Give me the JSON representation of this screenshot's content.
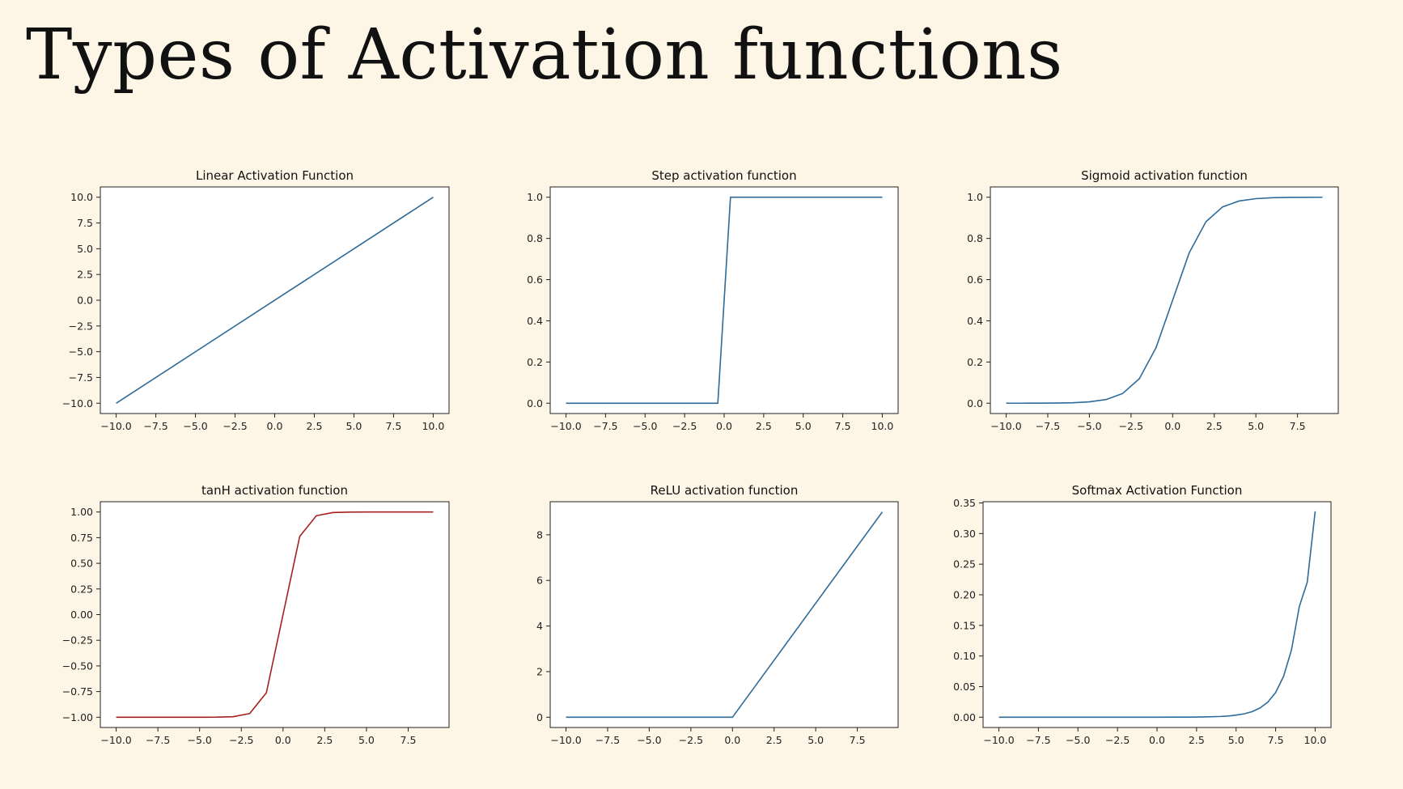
{
  "page": {
    "title": "Types of Activation functions"
  },
  "colors": {
    "background": "#fdf5e6",
    "plot_area": "#ffffff",
    "axes": "#222222",
    "series_default": "#2e6b99",
    "series_tanh": "#a52020"
  },
  "chart_data": [
    {
      "type": "line",
      "title": "Linear Activation Function",
      "xlabel": "",
      "ylabel": "",
      "xlim": [
        -11,
        11
      ],
      "ylim": [
        -11,
        11
      ],
      "xticks": [
        -10,
        -7.5,
        -5,
        -2.5,
        0,
        2.5,
        5,
        7.5,
        10
      ],
      "xtick_labels": [
        "−10.0",
        "−7.5",
        "−5.0",
        "−2.5",
        "0.0",
        "2.5",
        "5.0",
        "7.5",
        "10.0"
      ],
      "yticks": [
        -10,
        -7.5,
        -5,
        -2.5,
        0,
        2.5,
        5,
        7.5,
        10
      ],
      "ytick_labels": [
        "−10.0",
        "−7.5",
        "−5.0",
        "−2.5",
        "0.0",
        "2.5",
        "5.0",
        "7.5",
        "10.0"
      ],
      "series": [
        {
          "color": "#2e6b99",
          "x": [
            -10,
            10
          ],
          "y": [
            -10,
            10
          ]
        }
      ]
    },
    {
      "type": "line",
      "title": "Step activation function",
      "xlabel": "",
      "ylabel": "",
      "xlim": [
        -11,
        11
      ],
      "ylim": [
        -0.05,
        1.05
      ],
      "xticks": [
        -10,
        -7.5,
        -5,
        -2.5,
        0,
        2.5,
        5,
        7.5,
        10
      ],
      "xtick_labels": [
        "−10.0",
        "−7.5",
        "−5.0",
        "−2.5",
        "0.0",
        "2.5",
        "5.0",
        "7.5",
        "10.0"
      ],
      "yticks": [
        0,
        0.2,
        0.4,
        0.6,
        0.8,
        1.0
      ],
      "ytick_labels": [
        "0.0",
        "0.2",
        "0.4",
        "0.6",
        "0.8",
        "1.0"
      ],
      "series": [
        {
          "color": "#2e6b99",
          "x": [
            -10,
            -0.4,
            0.4,
            10
          ],
          "y": [
            0,
            0,
            1,
            1
          ]
        }
      ]
    },
    {
      "type": "line",
      "title": "Sigmoid activation function",
      "xlabel": "",
      "ylabel": "",
      "xlim": [
        -10.95,
        9.95
      ],
      "ylim": [
        -0.05,
        1.05
      ],
      "xticks": [
        -10,
        -7.5,
        -5,
        -2.5,
        0,
        2.5,
        5,
        7.5
      ],
      "xtick_labels": [
        "−10.0",
        "−7.5",
        "−5.0",
        "−2.5",
        "0.0",
        "2.5",
        "5.0",
        "7.5"
      ],
      "yticks": [
        0,
        0.2,
        0.4,
        0.6,
        0.8,
        1.0
      ],
      "ytick_labels": [
        "0.0",
        "0.2",
        "0.4",
        "0.6",
        "0.8",
        "1.0"
      ],
      "series": [
        {
          "color": "#2e6b99",
          "x": [
            -10,
            -9,
            -8,
            -7,
            -6,
            -5,
            -4,
            -3,
            -2,
            -1,
            0,
            1,
            2,
            3,
            4,
            5,
            6,
            7,
            8,
            9
          ],
          "y": [
            4.54e-05,
            0.000123,
            0.000335,
            0.000911,
            0.00247,
            0.00669,
            0.018,
            0.0474,
            0.119,
            0.269,
            0.5,
            0.731,
            0.881,
            0.953,
            0.982,
            0.993,
            0.9975,
            0.9991,
            0.99966,
            0.99988
          ]
        }
      ]
    },
    {
      "type": "line",
      "title": "tanH activation function",
      "xlabel": "",
      "ylabel": "",
      "xlim": [
        -10.95,
        9.95
      ],
      "ylim": [
        -1.1,
        1.1
      ],
      "xticks": [
        -10,
        -7.5,
        -5,
        -2.5,
        0,
        2.5,
        5,
        7.5
      ],
      "xtick_labels": [
        "−10.0",
        "−7.5",
        "−5.0",
        "−2.5",
        "0.0",
        "2.5",
        "5.0",
        "7.5"
      ],
      "yticks": [
        -1,
        -0.75,
        -0.5,
        -0.25,
        0,
        0.25,
        0.5,
        0.75,
        1
      ],
      "ytick_labels": [
        "−1.00",
        "−0.75",
        "−0.50",
        "−0.25",
        "0.00",
        "0.25",
        "0.50",
        "0.75",
        "1.00"
      ],
      "series": [
        {
          "color": "#a52020",
          "x": [
            -10,
            -9,
            -8,
            -7,
            -6,
            -5,
            -4,
            -3,
            -2,
            -1,
            0,
            1,
            2,
            3,
            4,
            5,
            6,
            7,
            8,
            9
          ],
          "y": [
            -1,
            -1,
            -1,
            -1,
            -1,
            -0.9999,
            -0.9993,
            -0.995,
            -0.964,
            -0.762,
            0,
            0.762,
            0.964,
            0.995,
            0.9993,
            0.9999,
            1,
            1,
            1,
            1
          ]
        }
      ]
    },
    {
      "type": "line",
      "title": "ReLU activation function",
      "xlabel": "",
      "ylabel": "",
      "xlim": [
        -10.95,
        9.95
      ],
      "ylim": [
        -0.45,
        9.45
      ],
      "xticks": [
        -10,
        -7.5,
        -5,
        -2.5,
        0,
        2.5,
        5,
        7.5
      ],
      "xtick_labels": [
        "−10.0",
        "−7.5",
        "−5.0",
        "−2.5",
        "0.0",
        "2.5",
        "5.0",
        "7.5"
      ],
      "yticks": [
        0,
        2,
        4,
        6,
        8
      ],
      "ytick_labels": [
        "0",
        "2",
        "4",
        "6",
        "8"
      ],
      "series": [
        {
          "color": "#2e6b99",
          "x": [
            -10,
            0,
            9
          ],
          "y": [
            0,
            0,
            9
          ]
        }
      ]
    },
    {
      "type": "line",
      "title": "Softmax Activation Function",
      "xlabel": "",
      "ylabel": "",
      "xlim": [
        -11,
        11
      ],
      "ylim": [
        -0.0168,
        0.352
      ],
      "xticks": [
        -10,
        -7.5,
        -5,
        -2.5,
        0,
        2.5,
        5,
        7.5,
        10
      ],
      "xtick_labels": [
        "−10.0",
        "−7.5",
        "−5.0",
        "−2.5",
        "0.0",
        "2.5",
        "5.0",
        "7.5",
        "10.0"
      ],
      "yticks": [
        0,
        0.05,
        0.1,
        0.15,
        0.2,
        0.25,
        0.3,
        0.35
      ],
      "ytick_labels": [
        "0.00",
        "0.05",
        "0.10",
        "0.15",
        "0.20",
        "0.25",
        "0.30",
        "0.35"
      ],
      "series": [
        {
          "color": "#2e6b99",
          "x": [
            -10,
            -9,
            -8,
            -7,
            -6,
            -5,
            -4,
            -3,
            -2,
            -1,
            0,
            1,
            2,
            3,
            4,
            4.5,
            5,
            5.5,
            6,
            6.5,
            7,
            7.5,
            8,
            8.5,
            9,
            9.5,
            10
          ],
          "y": [
            0,
            0,
            0,
            0,
            0,
            0,
            0,
            0,
            0,
            0,
            0,
            0.0001,
            0.0002,
            0.0005,
            0.0012,
            0.002,
            0.0034,
            0.0055,
            0.009,
            0.0149,
            0.0245,
            0.0404,
            0.0666,
            0.1098,
            0.181,
            0.2206,
            0.3363
          ]
        }
      ]
    }
  ]
}
